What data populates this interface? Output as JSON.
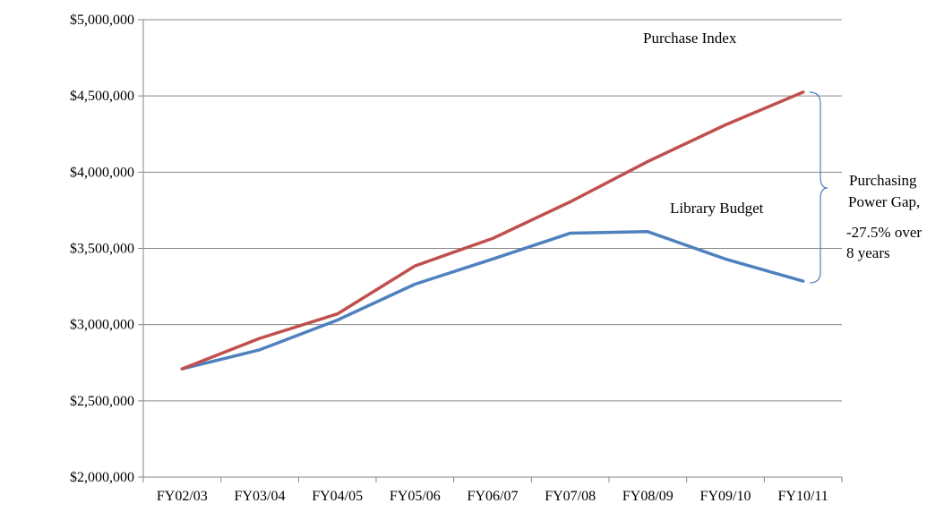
{
  "chart_data": {
    "type": "line",
    "categories": [
      "FY02/03",
      "FY03/04",
      "FY04/05",
      "FY05/06",
      "FY06/07",
      "FY07/08",
      "FY08/09",
      "FY09/10",
      "FY10/11"
    ],
    "series": [
      {
        "name": "Purchase Index",
        "color": "#c0504d",
        "values": [
          2710000,
          2910000,
          3070000,
          3385000,
          3565000,
          3805000,
          4070000,
          4310000,
          4525000
        ]
      },
      {
        "name": "Library Budget",
        "color": "#4f81bd",
        "values": [
          2710000,
          2835000,
          3030000,
          3265000,
          3430000,
          3600000,
          3610000,
          3430000,
          3285000
        ]
      }
    ],
    "ylim": [
      2000000,
      5000000
    ],
    "yticks": [
      2000000,
      2500000,
      3000000,
      3500000,
      4000000,
      4500000,
      5000000
    ],
    "ytick_labels": [
      "$2,000,000",
      "$2,500,000",
      "$3,000,000",
      "$3,500,000",
      "$4,000,000",
      "$4,500,000",
      "$5,000,000"
    ],
    "grid": true,
    "title": "",
    "xlabel": "",
    "ylabel": "",
    "annotations": {
      "purchase_index_label": "Purchase Index",
      "library_budget_label": "Library Budget",
      "gap_line1": "Purchasing",
      "gap_line2": "Power Gap,",
      "gap_line3": "-27.5% over",
      "gap_line4": "8 years"
    }
  }
}
